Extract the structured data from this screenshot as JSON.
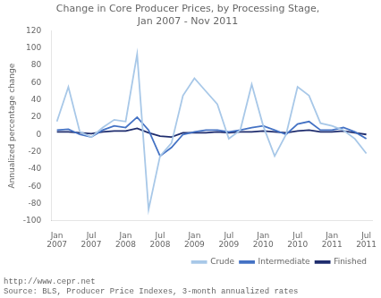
{
  "chart_data": {
    "type": "line",
    "title": "Change in Core Producer Prices, by Processing Stage,\nJan 2007 - Nov 2011",
    "ylabel": "Annualized percentage change",
    "annotations": [
      "http://www.cepr.net",
      "Source: BLS, Producer Price Indexes, 3-month annualized rates"
    ],
    "categories": [
      "Jan\n2007",
      null,
      null,
      "Jul\n2007",
      null,
      null,
      "Jan\n2008",
      null,
      null,
      "Jul\n2008",
      null,
      null,
      "Jan\n2009",
      null,
      null,
      "Jul\n2009",
      null,
      null,
      "Jan\n2010",
      null,
      null,
      "Jul\n2010",
      null,
      null,
      "Jan\n2011",
      null,
      null,
      "Jul\n2011"
    ],
    "series": [
      {
        "name": "Crude",
        "color": "#a8c8e8",
        "values": [
          15,
          55,
          3,
          -3,
          8,
          17,
          15,
          93,
          -87,
          -25,
          -10,
          45,
          65,
          50,
          35,
          -5,
          5,
          58,
          10,
          -25,
          0,
          55,
          45,
          13,
          10,
          5,
          -5,
          -22
        ]
      },
      {
        "name": "Intermediate",
        "color": "#4472c4",
        "values": [
          5,
          6,
          0,
          -3,
          5,
          10,
          8,
          20,
          5,
          -25,
          -15,
          0,
          3,
          5,
          5,
          3,
          5,
          8,
          10,
          5,
          0,
          12,
          15,
          5,
          5,
          8,
          3,
          -5
        ]
      },
      {
        "name": "Finished",
        "color": "#1f2d6e",
        "values": [
          3,
          3,
          2,
          1,
          3,
          4,
          4,
          7,
          2,
          -2,
          -3,
          2,
          2,
          2,
          3,
          2,
          3,
          3,
          4,
          3,
          2,
          4,
          5,
          3,
          3,
          4,
          2,
          0
        ]
      }
    ],
    "ylim": [
      -100,
      120
    ],
    "yticks": [
      -100,
      -80,
      -60,
      -40,
      -20,
      0,
      20,
      40,
      60,
      80,
      100,
      120
    ],
    "grid": false,
    "legend": "lower right"
  }
}
